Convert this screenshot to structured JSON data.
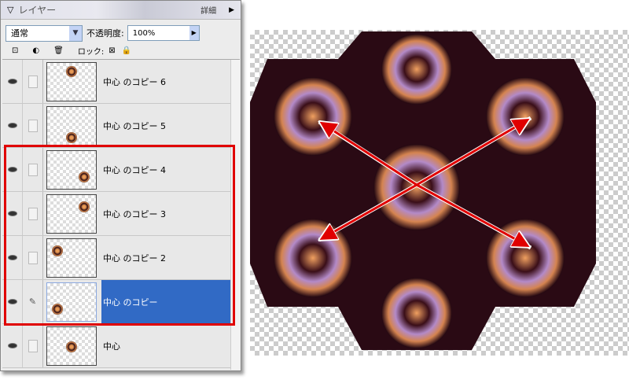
{
  "panel": {
    "title": "レイヤー",
    "more_label": "詳細",
    "blend_mode": "通常",
    "opacity_label": "不透明度:",
    "opacity_value": "100%",
    "lock_label": "ロック:"
  },
  "icons": [
    "new-layer-icon",
    "adjustment-layer-icon",
    "trash-icon",
    "lock-transparency-icon",
    "lock-icon",
    "eye-icon",
    "brush-icon"
  ],
  "layers": [
    {
      "name": "中心 のコピー 6",
      "active": false
    },
    {
      "name": "中心 のコピー 5",
      "active": false
    },
    {
      "name": "中心 のコピー 4",
      "active": false
    },
    {
      "name": "中心 のコピー 3",
      "active": false
    },
    {
      "name": "中心 のコピー 2",
      "active": false
    },
    {
      "name": "中心 のコピー",
      "active": true
    },
    {
      "name": "中心",
      "active": false
    }
  ],
  "colors": {
    "highlight": "#316ac5",
    "annotation": "#e00000"
  }
}
